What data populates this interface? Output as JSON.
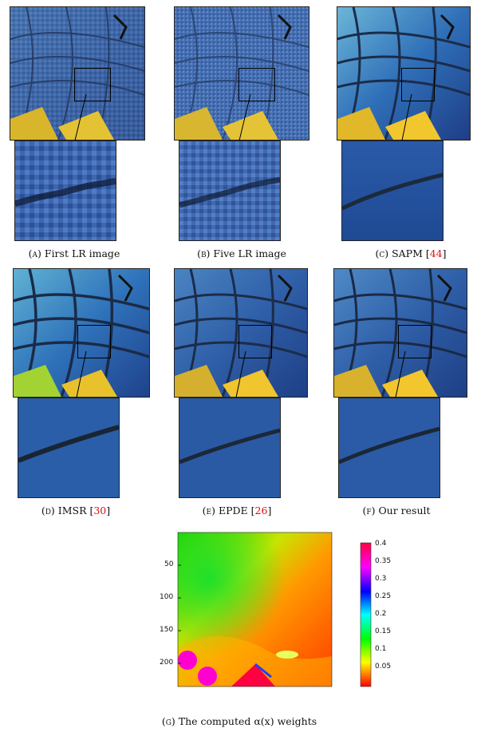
{
  "panels": [
    {
      "id": "a",
      "letter": "(a)",
      "text": "First LR image",
      "ref": ""
    },
    {
      "id": "b",
      "letter": "(b)",
      "text": "Five LR image",
      "ref": ""
    },
    {
      "id": "c",
      "letter": "(c)",
      "text": "SAPM [",
      "ref": "44"
    },
    {
      "id": "d",
      "letter": "(d)",
      "text": "IMSR [",
      "ref": "30"
    },
    {
      "id": "e",
      "letter": "(e)",
      "text": "EPDE [",
      "ref": "26"
    },
    {
      "id": "f",
      "letter": "(f)",
      "text": "Our result",
      "ref": ""
    }
  ],
  "heatmap": {
    "y_ticks": [
      "50",
      "100",
      "150",
      "200"
    ],
    "colorbar_ticks": [
      "0.4",
      "0.35",
      "0.3",
      "0.25",
      "0.2",
      "0.15",
      "0.1",
      "0.05"
    ],
    "caption_letter": "(g)",
    "caption_text": "The computed α(x) weights"
  },
  "chart_data": {
    "type": "heatmap",
    "title": "",
    "y_ticks": [
      50,
      100,
      150,
      200
    ],
    "colorbar_range": [
      0.02,
      0.4
    ],
    "colorbar_ticks": [
      0.05,
      0.1,
      0.15,
      0.2,
      0.25,
      0.3,
      0.35,
      0.4
    ],
    "colormap": "hsv"
  }
}
